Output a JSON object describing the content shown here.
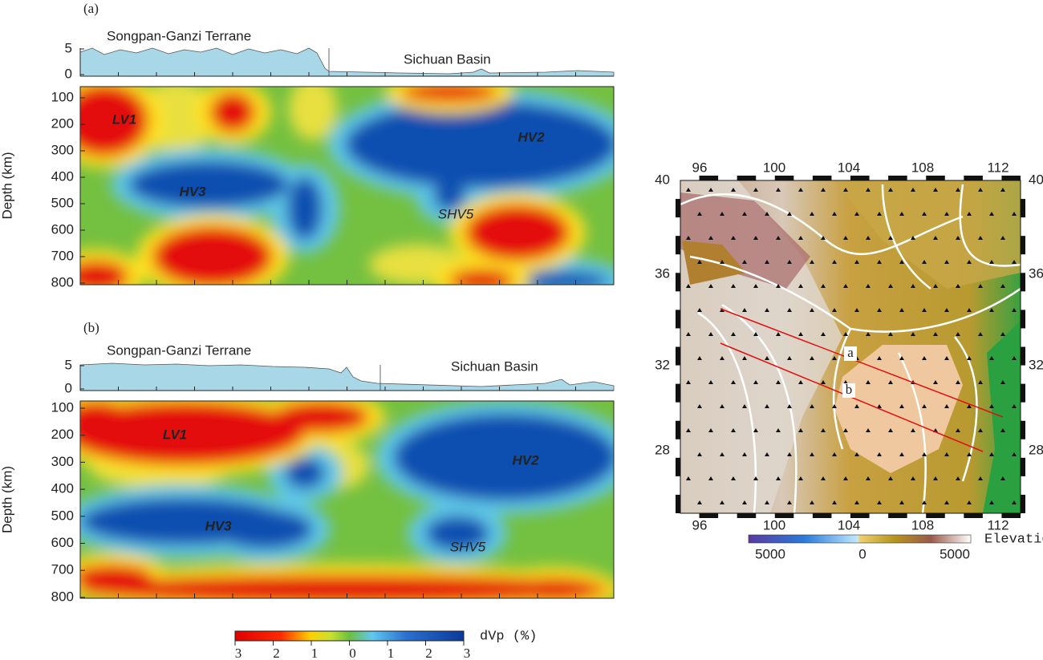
{
  "panels": [
    {
      "label": "(a)",
      "regions": [
        "Songpan-Ganzi Terrane",
        "Sichuan Basin"
      ],
      "topo_ticks": [
        5,
        0
      ],
      "depth_title": "Depth (km)",
      "depth_ticks": [
        100,
        200,
        300,
        400,
        500,
        600,
        700,
        800
      ],
      "anomalies": [
        "LV1",
        "HV2",
        "HV3",
        "SHV5"
      ]
    },
    {
      "label": "(b)",
      "regions": [
        "Songpan-Ganzi Terrane",
        "Sichuan Basin"
      ],
      "topo_ticks": [
        5,
        0
      ],
      "depth_title": "Depth (km)",
      "depth_ticks": [
        100,
        200,
        300,
        400,
        500,
        600,
        700,
        800
      ],
      "anomalies": [
        "LV1",
        "HV2",
        "HV3",
        "SHV5"
      ]
    }
  ],
  "colorbar": {
    "title": "dVp (%)",
    "labels": [
      3,
      2,
      1,
      0,
      1,
      2,
      3
    ]
  },
  "map": {
    "lon_ticks": [
      96,
      100,
      104,
      108,
      112
    ],
    "lat_ticks": [
      40,
      36,
      32,
      28
    ],
    "profiles": [
      "a",
      "b"
    ],
    "elevation_title": "Elevation (m)",
    "elevation_labels": [
      5000,
      0,
      5000
    ]
  }
}
